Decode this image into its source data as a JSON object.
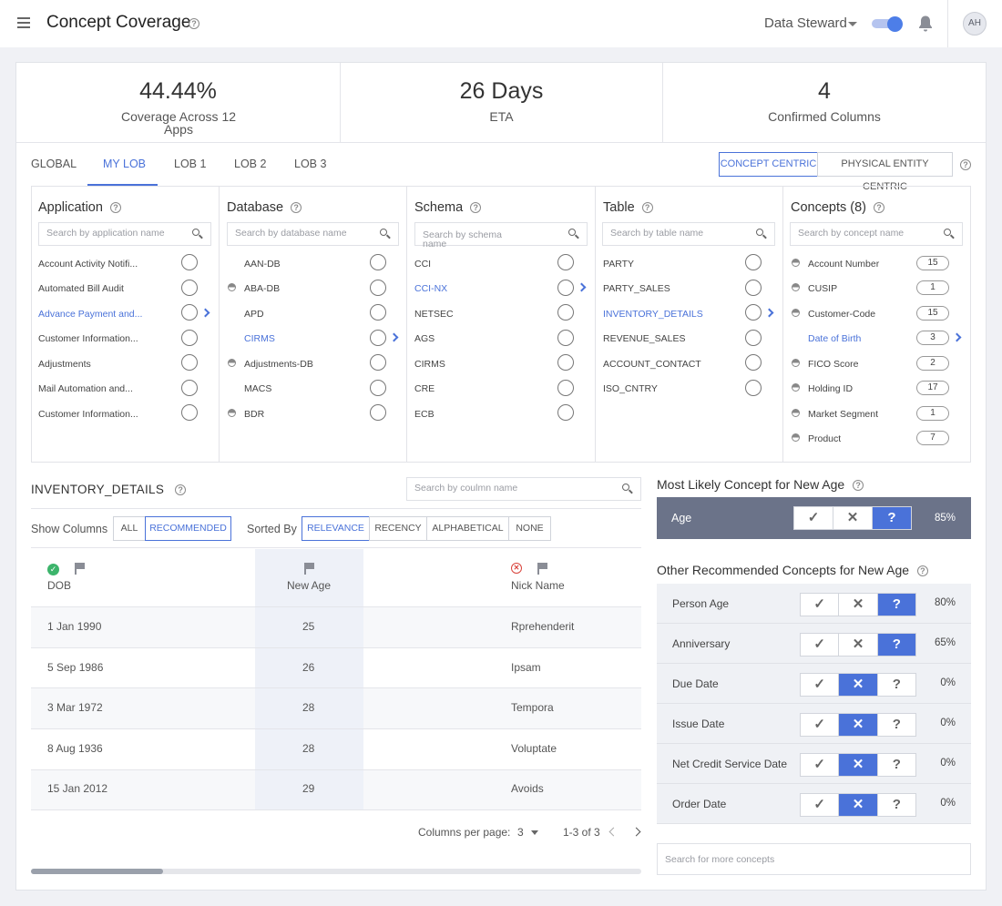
{
  "header": {
    "title": "Concept Coverage",
    "role": "Data Steward",
    "avatar": "AH"
  },
  "stats": [
    {
      "value": "44.44%",
      "label": "Coverage Across 12 Apps"
    },
    {
      "value": "26 Days",
      "label": "ETA"
    },
    {
      "value": "4",
      "label": "Confirmed Columns"
    }
  ],
  "tabs": [
    "GLOBAL",
    "MY LOB",
    "LOB 1",
    "LOB 2",
    "LOB 3"
  ],
  "active_tab": "MY LOB",
  "view_toggle": {
    "concept": "CONCEPT CENTRIC",
    "physical": "PHYSICAL ENTITY CENTRIC"
  },
  "columns": {
    "application": {
      "title": "Application",
      "placeholder": "Search by application name",
      "items": [
        "Account Activity Notifi...",
        "Automated Bill Audit",
        "Advance Payment and...",
        "Customer Information...",
        "Adjustments",
        "Mail Automation and...",
        "Customer Information..."
      ]
    },
    "database": {
      "title": "Database",
      "placeholder": "Search by database name",
      "items": [
        "AAN-DB",
        "ABA-DB",
        "APD",
        "CIRMS",
        "Adjustments-DB",
        "MACS",
        "BDR"
      ]
    },
    "schema": {
      "title": "Schema",
      "placeholder": "Search by schema name",
      "items": [
        "CCI",
        "CCI-NX",
        "NETSEC",
        "AGS",
        "CIRMS",
        "CRE",
        "ECB"
      ]
    },
    "table": {
      "title": "Table",
      "placeholder": "Search by table name",
      "items": [
        "PARTY",
        "PARTY_SALES",
        "INVENTORY_DETAILS",
        "REVENUE_SALES",
        "ACCOUNT_CONTACT",
        "ISO_CNTRY"
      ]
    },
    "concepts": {
      "title": "Concepts (8)",
      "placeholder": "Search by concept name",
      "items": [
        {
          "name": "Account Number",
          "count": "15"
        },
        {
          "name": "CUSIP",
          "count": "1"
        },
        {
          "name": "Customer-Code",
          "count": "15"
        },
        {
          "name": "Date of Birth",
          "count": "3"
        },
        {
          "name": "FICO Score",
          "count": "2"
        },
        {
          "name": "Holding ID",
          "count": "17"
        },
        {
          "name": "Market Segment",
          "count": "1"
        },
        {
          "name": "Product",
          "count": "7"
        }
      ]
    }
  },
  "table_section": {
    "title": "INVENTORY_DETAILS",
    "search_placeholder": "Search by coulmn name",
    "show_columns_label": "Show Columns",
    "show_options": [
      "ALL",
      "RECOMMENDED"
    ],
    "sorted_by_label": "Sorted By",
    "sort_options": [
      "RELEVANCE",
      "RECENCY",
      "ALPHABETICAL",
      "NONE"
    ],
    "headers": [
      "DOB",
      "New Age",
      "Nick Name"
    ],
    "rows": [
      [
        "1 Jan 1990",
        "25",
        "Rprehenderit"
      ],
      [
        "5 Sep 1986",
        "26",
        "Ipsam"
      ],
      [
        "3 Mar 1972",
        "28",
        "Tempora"
      ],
      [
        "8 Aug 1936",
        "28",
        "Voluptate"
      ],
      [
        "15 Jan 2012",
        "29",
        "Avoids"
      ]
    ],
    "per_page_label": "Columns per page:",
    "per_page_value": "3",
    "range": "1-3 of 3"
  },
  "right_panel": {
    "most_likely_title": "Most Likely Concept for New Age",
    "most_likely": {
      "name": "Age",
      "pct": "85%"
    },
    "other_title": "Other Recommended Concepts for New Age",
    "others": [
      {
        "name": "Person Age",
        "pct": "80%"
      },
      {
        "name": "Anniversary",
        "pct": "65%"
      },
      {
        "name": "Due Date",
        "pct": "0%"
      },
      {
        "name": "Issue Date",
        "pct": "0%"
      },
      {
        "name": "Net Credit Service Date",
        "pct": "0%"
      },
      {
        "name": "Order Date",
        "pct": "0%"
      }
    ],
    "search_placeholder": "Search for more concepts"
  },
  "colors": {
    "accent": "#4a72d9",
    "highlight_row": "#6b7389",
    "ok": "#3cb46b",
    "error": "#d9443c"
  }
}
